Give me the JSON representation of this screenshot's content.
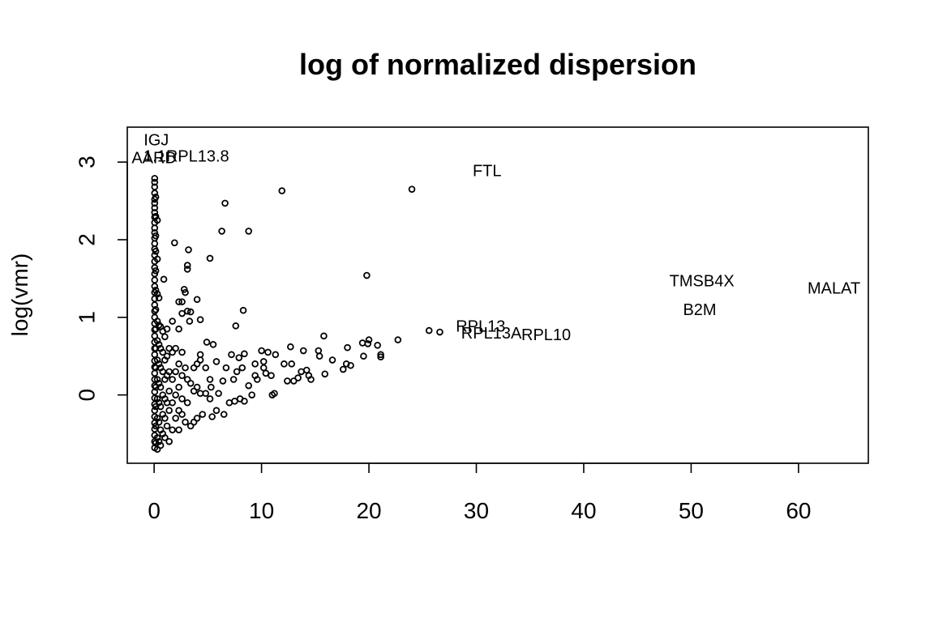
{
  "chart_data": {
    "type": "scatter",
    "title": "log of normalized dispersion",
    "xlabel": "",
    "ylabel": "log(vmr)",
    "xlim": [
      -2.5,
      66.5
    ],
    "ylim": [
      -0.88,
      3.45
    ],
    "xticks": [
      0,
      10,
      20,
      30,
      40,
      50,
      60
    ],
    "yticks": [
      0,
      1,
      2,
      3
    ],
    "grid": false,
    "legend": "none",
    "points": [
      {
        "x": 0.05,
        "y": 2.79
      },
      {
        "x": 0.05,
        "y": 2.74
      },
      {
        "x": 0.05,
        "y": 2.68
      },
      {
        "x": 0.05,
        "y": 2.6
      },
      {
        "x": 0.05,
        "y": 2.52
      },
      {
        "x": 0.05,
        "y": 2.47
      },
      {
        "x": 0.05,
        "y": 2.41
      },
      {
        "x": 0.05,
        "y": 2.35
      },
      {
        "x": 0.05,
        "y": 2.29
      },
      {
        "x": 0.05,
        "y": 2.22
      },
      {
        "x": 0.05,
        "y": 2.15
      },
      {
        "x": 0.05,
        "y": 2.09
      },
      {
        "x": 0.05,
        "y": 2.02
      },
      {
        "x": 0.05,
        "y": 1.95
      },
      {
        "x": 0.05,
        "y": 1.88
      },
      {
        "x": 0.05,
        "y": 1.8
      },
      {
        "x": 0.05,
        "y": 1.72
      },
      {
        "x": 0.05,
        "y": 1.64
      },
      {
        "x": 0.05,
        "y": 1.56
      },
      {
        "x": 0.05,
        "y": 1.48
      },
      {
        "x": 0.05,
        "y": 1.4
      },
      {
        "x": 0.05,
        "y": 1.32
      },
      {
        "x": 0.05,
        "y": 1.24
      },
      {
        "x": 0.05,
        "y": 1.16
      },
      {
        "x": 0.05,
        "y": 1.08
      },
      {
        "x": 0.05,
        "y": 1.0
      },
      {
        "x": 0.05,
        "y": 0.92
      },
      {
        "x": 0.05,
        "y": 0.84
      },
      {
        "x": 0.05,
        "y": 0.76
      },
      {
        "x": 0.05,
        "y": 0.68
      },
      {
        "x": 0.05,
        "y": 0.6
      },
      {
        "x": 0.05,
        "y": 0.52
      },
      {
        "x": 0.05,
        "y": 0.44
      },
      {
        "x": 0.05,
        "y": 0.36
      },
      {
        "x": 0.05,
        "y": 0.28
      },
      {
        "x": 0.05,
        "y": 0.2
      },
      {
        "x": 0.05,
        "y": 0.12
      },
      {
        "x": 0.05,
        "y": 0.04
      },
      {
        "x": 0.05,
        "y": -0.04
      },
      {
        "x": 0.05,
        "y": -0.12
      },
      {
        "x": 0.05,
        "y": -0.2
      },
      {
        "x": 0.05,
        "y": -0.28
      },
      {
        "x": 0.05,
        "y": -0.36
      },
      {
        "x": 0.05,
        "y": -0.44
      },
      {
        "x": 0.05,
        "y": -0.52
      },
      {
        "x": 0.05,
        "y": -0.6
      },
      {
        "x": 0.05,
        "y": -0.68
      },
      {
        "x": 0.15,
        "y": 2.55
      },
      {
        "x": 0.15,
        "y": 2.3
      },
      {
        "x": 0.15,
        "y": 2.05
      },
      {
        "x": 0.15,
        "y": 1.85
      },
      {
        "x": 0.15,
        "y": 1.6
      },
      {
        "x": 0.15,
        "y": 1.35
      },
      {
        "x": 0.15,
        "y": 1.1
      },
      {
        "x": 0.15,
        "y": 0.85
      },
      {
        "x": 0.15,
        "y": 0.6
      },
      {
        "x": 0.15,
        "y": 0.35
      },
      {
        "x": 0.15,
        "y": 0.1
      },
      {
        "x": 0.15,
        "y": -0.15
      },
      {
        "x": 0.15,
        "y": -0.4
      },
      {
        "x": 0.15,
        "y": -0.62
      },
      {
        "x": 0.3,
        "y": 2.25
      },
      {
        "x": 0.3,
        "y": 1.75
      },
      {
        "x": 0.3,
        "y": 1.3
      },
      {
        "x": 0.3,
        "y": 0.95
      },
      {
        "x": 0.3,
        "y": 0.7
      },
      {
        "x": 0.3,
        "y": 0.45
      },
      {
        "x": 0.3,
        "y": 0.2
      },
      {
        "x": 0.3,
        "y": -0.05
      },
      {
        "x": 0.3,
        "y": -0.3
      },
      {
        "x": 0.3,
        "y": -0.55
      },
      {
        "x": 0.3,
        "y": -0.7
      },
      {
        "x": 0.45,
        "y": 1.25
      },
      {
        "x": 0.45,
        "y": 0.9
      },
      {
        "x": 0.45,
        "y": 0.65
      },
      {
        "x": 0.45,
        "y": 0.4
      },
      {
        "x": 0.45,
        "y": 0.15
      },
      {
        "x": 0.45,
        "y": -0.1
      },
      {
        "x": 0.45,
        "y": -0.35
      },
      {
        "x": 0.45,
        "y": -0.6
      },
      {
        "x": 0.6,
        "y": 0.88
      },
      {
        "x": 0.6,
        "y": 0.6
      },
      {
        "x": 0.6,
        "y": 0.35
      },
      {
        "x": 0.6,
        "y": 0.1
      },
      {
        "x": 0.6,
        "y": -0.15
      },
      {
        "x": 0.6,
        "y": -0.45
      },
      {
        "x": 0.6,
        "y": -0.65
      },
      {
        "x": 0.8,
        "y": 0.82
      },
      {
        "x": 0.8,
        "y": 0.55
      },
      {
        "x": 0.8,
        "y": 0.3
      },
      {
        "x": 0.8,
        "y": 0.0
      },
      {
        "x": 0.8,
        "y": -0.25
      },
      {
        "x": 0.8,
        "y": -0.5
      },
      {
        "x": 0.9,
        "y": 1.49
      },
      {
        "x": 1.0,
        "y": 0.75
      },
      {
        "x": 1.0,
        "y": 0.45
      },
      {
        "x": 1.0,
        "y": 0.2
      },
      {
        "x": 1.0,
        "y": -0.05
      },
      {
        "x": 1.0,
        "y": -0.3
      },
      {
        "x": 1.0,
        "y": -0.55
      },
      {
        "x": 1.2,
        "y": 0.85
      },
      {
        "x": 1.2,
        "y": 0.5
      },
      {
        "x": 1.2,
        "y": 0.25
      },
      {
        "x": 1.2,
        "y": -0.1
      },
      {
        "x": 1.2,
        "y": -0.4
      },
      {
        "x": 1.4,
        "y": 0.6
      },
      {
        "x": 1.4,
        "y": 0.3
      },
      {
        "x": 1.4,
        "y": 0.05
      },
      {
        "x": 1.4,
        "y": -0.2
      },
      {
        "x": 1.4,
        "y": -0.6
      },
      {
        "x": 1.7,
        "y": 0.95
      },
      {
        "x": 1.7,
        "y": 0.55
      },
      {
        "x": 1.7,
        "y": 0.2
      },
      {
        "x": 1.7,
        "y": -0.1
      },
      {
        "x": 1.7,
        "y": -0.45
      },
      {
        "x": 1.9,
        "y": 1.96
      },
      {
        "x": 2.0,
        "y": 0.6
      },
      {
        "x": 2.0,
        "y": 0.3
      },
      {
        "x": 2.0,
        "y": 0.0
      },
      {
        "x": 2.0,
        "y": -0.3
      },
      {
        "x": 2.3,
        "y": 1.2
      },
      {
        "x": 2.3,
        "y": 0.85
      },
      {
        "x": 2.3,
        "y": 0.4
      },
      {
        "x": 2.3,
        "y": 0.1
      },
      {
        "x": 2.3,
        "y": -0.2
      },
      {
        "x": 2.3,
        "y": -0.45
      },
      {
        "x": 2.6,
        "y": 1.2
      },
      {
        "x": 2.6,
        "y": 1.05
      },
      {
        "x": 2.6,
        "y": 0.55
      },
      {
        "x": 2.6,
        "y": 0.25
      },
      {
        "x": 2.6,
        "y": -0.05
      },
      {
        "x": 2.6,
        "y": -0.25
      },
      {
        "x": 2.8,
        "y": 1.36
      },
      {
        "x": 2.9,
        "y": 1.32
      },
      {
        "x": 2.9,
        "y": 0.35
      },
      {
        "x": 2.9,
        "y": -0.35
      },
      {
        "x": 3.1,
        "y": 1.67
      },
      {
        "x": 3.1,
        "y": 1.62
      },
      {
        "x": 3.2,
        "y": 1.87
      },
      {
        "x": 3.1,
        "y": 1.08
      },
      {
        "x": 3.1,
        "y": 0.2
      },
      {
        "x": 3.1,
        "y": -0.1
      },
      {
        "x": 3.3,
        "y": 0.95
      },
      {
        "x": 3.4,
        "y": 1.07
      },
      {
        "x": 3.4,
        "y": 0.15
      },
      {
        "x": 3.4,
        "y": -0.4
      },
      {
        "x": 3.7,
        "y": 0.35
      },
      {
        "x": 3.7,
        "y": 0.05
      },
      {
        "x": 3.7,
        "y": -0.35
      },
      {
        "x": 4.0,
        "y": 1.23
      },
      {
        "x": 4.0,
        "y": 0.4
      },
      {
        "x": 4.0,
        "y": 0.1
      },
      {
        "x": 4.0,
        "y": -0.3
      },
      {
        "x": 4.3,
        "y": 0.97
      },
      {
        "x": 4.3,
        "y": 0.52
      },
      {
        "x": 4.3,
        "y": 0.45
      },
      {
        "x": 4.3,
        "y": 0.02
      },
      {
        "x": 4.5,
        "y": -0.25
      },
      {
        "x": 4.8,
        "y": 0.35
      },
      {
        "x": 4.8,
        "y": 0.02
      },
      {
        "x": 4.9,
        "y": 0.68
      },
      {
        "x": 5.2,
        "y": 1.76
      },
      {
        "x": 5.2,
        "y": 0.2
      },
      {
        "x": 5.2,
        "y": -0.05
      },
      {
        "x": 5.3,
        "y": 0.1
      },
      {
        "x": 5.4,
        "y": -0.28
      },
      {
        "x": 5.5,
        "y": 0.65
      },
      {
        "x": 5.8,
        "y": 0.43
      },
      {
        "x": 5.8,
        "y": -0.2
      },
      {
        "x": 6.0,
        "y": 0.02
      },
      {
        "x": 6.3,
        "y": 2.11
      },
      {
        "x": 6.4,
        "y": 0.18
      },
      {
        "x": 6.5,
        "y": -0.25
      },
      {
        "x": 6.6,
        "y": 2.47
      },
      {
        "x": 6.7,
        "y": 0.35
      },
      {
        "x": 7.0,
        "y": -0.1
      },
      {
        "x": 7.2,
        "y": 0.52
      },
      {
        "x": 7.4,
        "y": 0.2
      },
      {
        "x": 7.5,
        "y": -0.08
      },
      {
        "x": 7.6,
        "y": 0.89
      },
      {
        "x": 7.7,
        "y": 0.3
      },
      {
        "x": 7.9,
        "y": 0.48
      },
      {
        "x": 8.0,
        "y": -0.05
      },
      {
        "x": 8.2,
        "y": 0.35
      },
      {
        "x": 8.3,
        "y": 1.09
      },
      {
        "x": 8.4,
        "y": 0.53
      },
      {
        "x": 8.4,
        "y": -0.08
      },
      {
        "x": 8.8,
        "y": 2.11
      },
      {
        "x": 8.8,
        "y": 0.12
      },
      {
        "x": 9.1,
        "y": 0.0
      },
      {
        "x": 9.4,
        "y": 0.4
      },
      {
        "x": 9.4,
        "y": 0.25
      },
      {
        "x": 9.6,
        "y": 0.2
      },
      {
        "x": 10.0,
        "y": 0.57
      },
      {
        "x": 10.2,
        "y": 0.43
      },
      {
        "x": 10.2,
        "y": 0.35
      },
      {
        "x": 10.4,
        "y": 0.28
      },
      {
        "x": 10.6,
        "y": 0.55
      },
      {
        "x": 10.9,
        "y": 0.25
      },
      {
        "x": 11.0,
        "y": 0.0
      },
      {
        "x": 11.2,
        "y": 0.02
      },
      {
        "x": 11.3,
        "y": 0.52
      },
      {
        "x": 11.9,
        "y": 2.63
      },
      {
        "x": 12.1,
        "y": 0.4
      },
      {
        "x": 12.4,
        "y": 0.18
      },
      {
        "x": 12.7,
        "y": 0.62
      },
      {
        "x": 12.8,
        "y": 0.4
      },
      {
        "x": 13.0,
        "y": 0.18
      },
      {
        "x": 13.4,
        "y": 0.22
      },
      {
        "x": 13.7,
        "y": 0.3
      },
      {
        "x": 13.9,
        "y": 0.57
      },
      {
        "x": 14.2,
        "y": 0.32
      },
      {
        "x": 14.4,
        "y": 0.25
      },
      {
        "x": 14.6,
        "y": 0.2
      },
      {
        "x": 15.3,
        "y": 0.57
      },
      {
        "x": 15.4,
        "y": 0.5
      },
      {
        "x": 15.8,
        "y": 0.76
      },
      {
        "x": 15.9,
        "y": 0.27
      },
      {
        "x": 16.6,
        "y": 0.45
      },
      {
        "x": 17.6,
        "y": 0.33
      },
      {
        "x": 17.9,
        "y": 0.4
      },
      {
        "x": 18.0,
        "y": 0.61
      },
      {
        "x": 18.3,
        "y": 0.38
      },
      {
        "x": 19.4,
        "y": 0.67
      },
      {
        "x": 19.5,
        "y": 0.5
      },
      {
        "x": 19.8,
        "y": 1.54
      },
      {
        "x": 19.9,
        "y": 0.66
      },
      {
        "x": 20.0,
        "y": 0.71
      },
      {
        "x": 20.8,
        "y": 0.64
      },
      {
        "x": 21.1,
        "y": 0.52
      },
      {
        "x": 21.1,
        "y": 0.49
      },
      {
        "x": 22.7,
        "y": 0.71
      },
      {
        "x": 24.0,
        "y": 2.65
      },
      {
        "x": 25.6,
        "y": 0.83
      },
      {
        "x": 26.6,
        "y": 0.81
      }
    ],
    "labels": [
      {
        "text": "IGJ",
        "x": 0.2,
        "y": 3.28
      },
      {
        "text": "AARD",
        "x": 0.0,
        "y": 3.05
      },
      {
        "text": "1.1RPL13.8",
        "x": 3.0,
        "y": 3.07
      },
      {
        "text": "FTL",
        "x": 31.0,
        "y": 2.88
      },
      {
        "text": "TMSB4X",
        "x": 51.0,
        "y": 1.46
      },
      {
        "text": "MALAT",
        "x": 63.3,
        "y": 1.37
      },
      {
        "text": "B2M",
        "x": 50.8,
        "y": 1.09
      },
      {
        "text": "RPL13",
        "x": 30.4,
        "y": 0.88
      },
      {
        "text": "RPL13A",
        "x": 31.4,
        "y": 0.79
      },
      {
        "text": "RPL10",
        "x": 36.5,
        "y": 0.77
      }
    ]
  }
}
